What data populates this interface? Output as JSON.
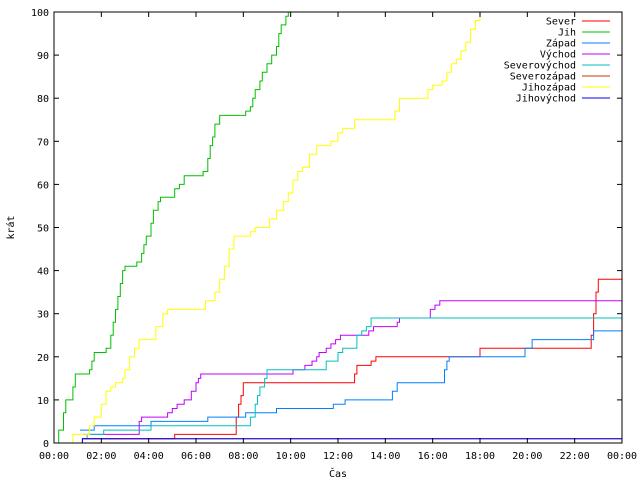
{
  "chart_data": {
    "type": "line",
    "step": true,
    "xlabel": "Čas",
    "ylabel": "krát",
    "xlim": [
      0,
      24
    ],
    "ylim": [
      0,
      100
    ],
    "x_ticks": [
      0,
      2,
      4,
      6,
      8,
      10,
      12,
      14,
      16,
      18,
      20,
      22,
      24
    ],
    "x_tick_labels": [
      "00:00",
      "02:00",
      "04:00",
      "06:00",
      "08:00",
      "10:00",
      "12:00",
      "14:00",
      "16:00",
      "18:00",
      "20:00",
      "22:00",
      "00:00"
    ],
    "y_ticks": [
      0,
      10,
      20,
      30,
      40,
      50,
      60,
      70,
      80,
      90,
      100
    ],
    "y_tick_labels": [
      "0",
      "10",
      "20",
      "30",
      "40",
      "50",
      "60",
      "70",
      "80",
      "90",
      "100"
    ],
    "grid": false,
    "legend_position": "top-right",
    "series": [
      {
        "name": "Sever",
        "color": "#ff0000",
        "points": [
          [
            1.2,
            1
          ],
          [
            5.0,
            1
          ],
          [
            5.1,
            2
          ],
          [
            7.6,
            2
          ],
          [
            7.7,
            6
          ],
          [
            7.8,
            9
          ],
          [
            7.9,
            11
          ],
          [
            8.0,
            14
          ],
          [
            12.6,
            14
          ],
          [
            12.7,
            16
          ],
          [
            12.8,
            18
          ],
          [
            13.3,
            18
          ],
          [
            13.4,
            19
          ],
          [
            13.6,
            20
          ],
          [
            17.9,
            20
          ],
          [
            18.0,
            22
          ],
          [
            22.6,
            22
          ],
          [
            22.7,
            25
          ],
          [
            22.8,
            30
          ],
          [
            22.9,
            35
          ],
          [
            23.0,
            38
          ],
          [
            24.0,
            38
          ]
        ]
      },
      {
        "name": "Jih",
        "color": "#00c000",
        "points": [
          [
            0,
            0
          ],
          [
            0.2,
            3
          ],
          [
            0.4,
            7
          ],
          [
            0.5,
            10
          ],
          [
            0.8,
            13
          ],
          [
            0.9,
            16
          ],
          [
            1.5,
            17
          ],
          [
            1.6,
            19
          ],
          [
            1.7,
            21
          ],
          [
            2.2,
            22
          ],
          [
            2.4,
            25
          ],
          [
            2.5,
            28
          ],
          [
            2.6,
            31
          ],
          [
            2.7,
            34
          ],
          [
            2.8,
            37
          ],
          [
            2.9,
            40
          ],
          [
            3.0,
            41
          ],
          [
            3.5,
            42
          ],
          [
            3.7,
            44
          ],
          [
            3.8,
            46
          ],
          [
            3.9,
            48
          ],
          [
            4.1,
            51
          ],
          [
            4.2,
            54
          ],
          [
            4.4,
            56
          ],
          [
            4.5,
            57
          ],
          [
            5.1,
            59
          ],
          [
            5.3,
            60
          ],
          [
            5.5,
            62
          ],
          [
            6.3,
            63
          ],
          [
            6.5,
            66
          ],
          [
            6.6,
            69
          ],
          [
            6.7,
            71
          ],
          [
            6.8,
            74
          ],
          [
            7.0,
            76
          ],
          [
            7.9,
            76
          ],
          [
            8.1,
            77
          ],
          [
            8.3,
            78
          ],
          [
            8.4,
            80
          ],
          [
            8.5,
            82
          ],
          [
            8.7,
            84
          ],
          [
            8.8,
            86
          ],
          [
            9.0,
            88
          ],
          [
            9.2,
            90
          ],
          [
            9.4,
            92
          ],
          [
            9.5,
            95
          ],
          [
            9.6,
            97
          ],
          [
            9.8,
            99
          ],
          [
            9.9,
            100
          ],
          [
            10.0,
            100
          ]
        ]
      },
      {
        "name": "Západ",
        "color": "#0080ff",
        "points": [
          [
            1.1,
            3
          ],
          [
            1.6,
            3
          ],
          [
            1.7,
            4
          ],
          [
            4.0,
            4
          ],
          [
            4.1,
            5
          ],
          [
            6.4,
            5
          ],
          [
            6.5,
            6
          ],
          [
            8.0,
            6
          ],
          [
            8.1,
            7
          ],
          [
            9.3,
            7
          ],
          [
            9.4,
            8
          ],
          [
            11.7,
            8
          ],
          [
            11.8,
            9
          ],
          [
            12.2,
            9
          ],
          [
            12.3,
            10
          ],
          [
            14.2,
            10
          ],
          [
            14.3,
            12
          ],
          [
            14.5,
            14
          ],
          [
            16.4,
            14
          ],
          [
            16.5,
            17
          ],
          [
            16.6,
            19
          ],
          [
            16.7,
            20
          ],
          [
            19.8,
            20
          ],
          [
            19.9,
            22
          ],
          [
            20.2,
            24
          ],
          [
            22.7,
            24
          ],
          [
            22.8,
            26
          ],
          [
            24.0,
            26
          ]
        ]
      },
      {
        "name": "Východ",
        "color": "#c000ff",
        "points": [
          [
            1.2,
            2
          ],
          [
            3.5,
            2
          ],
          [
            3.6,
            5
          ],
          [
            3.7,
            6
          ],
          [
            4.7,
            6
          ],
          [
            4.8,
            7
          ],
          [
            5.0,
            8
          ],
          [
            5.2,
            9
          ],
          [
            5.5,
            10
          ],
          [
            5.8,
            12
          ],
          [
            6.0,
            14
          ],
          [
            6.1,
            15
          ],
          [
            6.2,
            16
          ],
          [
            10.0,
            16
          ],
          [
            10.1,
            17
          ],
          [
            10.5,
            17
          ],
          [
            10.6,
            18
          ],
          [
            10.9,
            19
          ],
          [
            11.1,
            20
          ],
          [
            11.2,
            21
          ],
          [
            11.5,
            22
          ],
          [
            11.7,
            23
          ],
          [
            11.9,
            24
          ],
          [
            12.1,
            25
          ],
          [
            13.2,
            25
          ],
          [
            13.3,
            26
          ],
          [
            13.5,
            27
          ],
          [
            14.5,
            28
          ],
          [
            14.6,
            29
          ],
          [
            15.8,
            29
          ],
          [
            15.9,
            31
          ],
          [
            16.1,
            32
          ],
          [
            16.3,
            33
          ],
          [
            24.0,
            33
          ]
        ]
      },
      {
        "name": "Severovýchod",
        "color": "#00c0c0",
        "points": [
          [
            1.3,
            1
          ],
          [
            1.4,
            2
          ],
          [
            2.0,
            2
          ],
          [
            2.1,
            3
          ],
          [
            4.0,
            3
          ],
          [
            4.1,
            4
          ],
          [
            8.1,
            4
          ],
          [
            8.3,
            6
          ],
          [
            8.5,
            9
          ],
          [
            8.6,
            11
          ],
          [
            8.7,
            13
          ],
          [
            8.9,
            15
          ],
          [
            9.0,
            17
          ],
          [
            11.3,
            17
          ],
          [
            11.5,
            19
          ],
          [
            11.9,
            19
          ],
          [
            12.0,
            21
          ],
          [
            12.2,
            22
          ],
          [
            12.6,
            22
          ],
          [
            12.8,
            25
          ],
          [
            13.0,
            26
          ],
          [
            13.2,
            27
          ],
          [
            13.4,
            29
          ],
          [
            24.0,
            29
          ]
        ]
      },
      {
        "name": "Severozápad",
        "color": "#c04000",
        "points": [
          [
            1.1,
            0
          ],
          [
            1.2,
            1
          ],
          [
            24.0,
            1
          ]
        ]
      },
      {
        "name": "Jihozápad",
        "color": "#ffff00",
        "points": [
          [
            0.5,
            0
          ],
          [
            0.8,
            2
          ],
          [
            1.3,
            2
          ],
          [
            1.5,
            4
          ],
          [
            1.7,
            6
          ],
          [
            2.0,
            9
          ],
          [
            2.2,
            12
          ],
          [
            2.4,
            13
          ],
          [
            2.6,
            14
          ],
          [
            2.9,
            15
          ],
          [
            3.0,
            17
          ],
          [
            3.2,
            20
          ],
          [
            3.4,
            22
          ],
          [
            3.6,
            24
          ],
          [
            4.1,
            24
          ],
          [
            4.3,
            27
          ],
          [
            4.6,
            30
          ],
          [
            4.8,
            31
          ],
          [
            6.2,
            31
          ],
          [
            6.4,
            33
          ],
          [
            6.8,
            35
          ],
          [
            7.0,
            38
          ],
          [
            7.2,
            41
          ],
          [
            7.4,
            45
          ],
          [
            7.6,
            48
          ],
          [
            8.1,
            48
          ],
          [
            8.3,
            49
          ],
          [
            8.5,
            50
          ],
          [
            8.9,
            50
          ],
          [
            9.1,
            52
          ],
          [
            9.4,
            54
          ],
          [
            9.7,
            56
          ],
          [
            9.9,
            58
          ],
          [
            10.1,
            61
          ],
          [
            10.3,
            63
          ],
          [
            10.5,
            64
          ],
          [
            10.8,
            67
          ],
          [
            11.1,
            69
          ],
          [
            11.7,
            70
          ],
          [
            12.0,
            72
          ],
          [
            12.2,
            73
          ],
          [
            12.5,
            73
          ],
          [
            12.7,
            75
          ],
          [
            14.2,
            75
          ],
          [
            14.4,
            77
          ],
          [
            14.6,
            80
          ],
          [
            15.6,
            80
          ],
          [
            15.8,
            82
          ],
          [
            16.0,
            83
          ],
          [
            16.4,
            84
          ],
          [
            16.6,
            86
          ],
          [
            16.8,
            88
          ],
          [
            17.0,
            89
          ],
          [
            17.2,
            91
          ],
          [
            17.4,
            93
          ],
          [
            17.6,
            96
          ],
          [
            17.8,
            98
          ],
          [
            18.0,
            100
          ],
          [
            18.7,
            100
          ]
        ]
      },
      {
        "name": "Jihovýchod",
        "color": "#0000ff",
        "points": [
          [
            1.1,
            0
          ],
          [
            1.2,
            1
          ],
          [
            24.0,
            1
          ]
        ]
      }
    ]
  }
}
